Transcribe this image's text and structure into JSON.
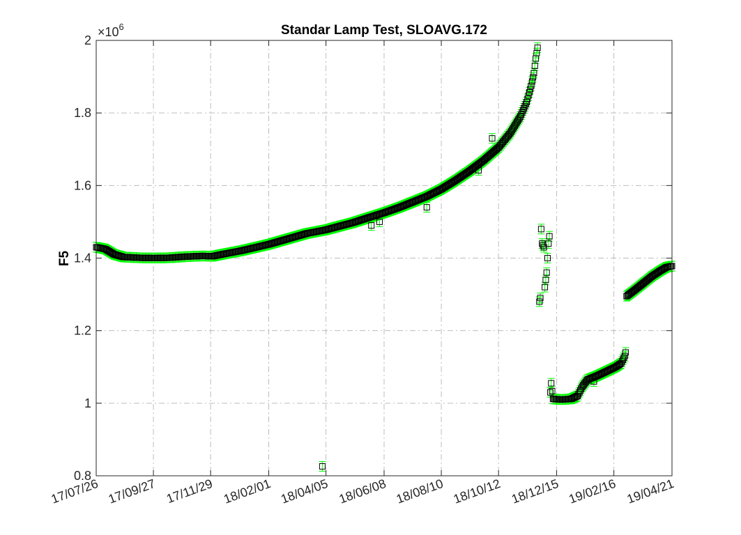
{
  "chart_data": {
    "type": "scatter",
    "title": "Standar Lamp Test, SLOAVG.172",
    "xlabel": "",
    "ylabel": "F5",
    "y_exponent_base": "×10",
    "y_exponent_power": "6",
    "y_multiplier": 1000000,
    "ylim": [
      0.8,
      2.0
    ],
    "yticks": [
      0.8,
      1.0,
      1.2,
      1.4,
      1.6,
      1.8,
      2.0
    ],
    "ytick_labels": [
      "0.8",
      "1",
      "1.2",
      "1.4",
      "1.6",
      "1.8",
      "2"
    ],
    "xlim": [
      "2017-07-26",
      "2019-04-21"
    ],
    "xticks": [
      "2017-07-26",
      "2017-09-27",
      "2017-11-29",
      "2018-02-01",
      "2018-04-05",
      "2018-06-08",
      "2018-08-10",
      "2018-10-12",
      "2018-12-15",
      "2019-02-16",
      "2019-04-21"
    ],
    "xtick_labels": [
      "17/07/26",
      "17/09/27",
      "17/11/29",
      "18/02/01",
      "18/04/05",
      "18/06/08",
      "18/08/10",
      "18/10/12",
      "18/12/15",
      "19/02/16",
      "19/04/21"
    ],
    "grid": true,
    "marker": "square",
    "marker_color": "#000000",
    "errorbar_color": "#00ff00",
    "segments": [
      {
        "points": [
          [
            "2017-07-26",
            1.43
          ],
          [
            "2017-08-05",
            1.425
          ],
          [
            "2017-08-15",
            1.41
          ],
          [
            "2017-08-25",
            1.403
          ],
          [
            "2017-09-10",
            1.401
          ],
          [
            "2017-09-27",
            1.4
          ],
          [
            "2017-10-15",
            1.401
          ],
          [
            "2017-11-01",
            1.404
          ],
          [
            "2017-11-20",
            1.406
          ],
          [
            "2017-12-01",
            1.405
          ],
          [
            "2017-12-15",
            1.412
          ],
          [
            "2018-01-01",
            1.42
          ],
          [
            "2018-01-15",
            1.428
          ],
          [
            "2018-02-01",
            1.438
          ],
          [
            "2018-02-15",
            1.448
          ],
          [
            "2018-03-01",
            1.458
          ],
          [
            "2018-03-15",
            1.468
          ],
          [
            "2018-04-05",
            1.478
          ],
          [
            "2018-04-20",
            1.488
          ],
          [
            "2018-05-05",
            1.498
          ],
          [
            "2018-05-20",
            1.51
          ],
          [
            "2018-06-08",
            1.525
          ],
          [
            "2018-06-25",
            1.54
          ],
          [
            "2018-07-10",
            1.555
          ],
          [
            "2018-07-25",
            1.57
          ],
          [
            "2018-08-10",
            1.59
          ],
          [
            "2018-08-25",
            1.613
          ],
          [
            "2018-09-10",
            1.64
          ],
          [
            "2018-09-25",
            1.668
          ],
          [
            "2018-10-12",
            1.705
          ],
          [
            "2018-10-25",
            1.745
          ],
          [
            "2018-11-05",
            1.79
          ],
          [
            "2018-11-12",
            1.83
          ],
          [
            "2018-11-17",
            1.875
          ],
          [
            "2018-11-20",
            1.91
          ],
          [
            "2018-11-22",
            1.95
          ],
          [
            "2018-11-24",
            1.98
          ]
        ]
      },
      {
        "points": [
          [
            "2018-11-26",
            1.28
          ],
          [
            "2018-11-27",
            1.29
          ],
          [
            "2018-11-28",
            1.48
          ],
          [
            "2018-11-29",
            1.44
          ],
          [
            "2018-12-01",
            1.43
          ],
          [
            "2018-12-02",
            1.32
          ],
          [
            "2018-12-04",
            1.36
          ],
          [
            "2018-12-06",
            1.44
          ],
          [
            "2018-12-07",
            1.46
          ]
        ]
      },
      {
        "points": [
          [
            "2018-12-08",
            1.03
          ],
          [
            "2018-12-09",
            1.055
          ],
          [
            "2018-12-11",
            1.012
          ],
          [
            "2018-12-20",
            1.01
          ],
          [
            "2018-12-31",
            1.012
          ],
          [
            "2019-01-07",
            1.02
          ],
          [
            "2019-01-12",
            1.045
          ],
          [
            "2019-01-18",
            1.065
          ],
          [
            "2019-01-28",
            1.075
          ],
          [
            "2019-02-08",
            1.088
          ],
          [
            "2019-02-18",
            1.1
          ],
          [
            "2019-02-24",
            1.11
          ],
          [
            "2019-02-28",
            1.13
          ],
          [
            "2019-03-01",
            1.14
          ]
        ]
      },
      {
        "points": [
          [
            "2019-03-02",
            1.295
          ],
          [
            "2019-03-10",
            1.31
          ],
          [
            "2019-03-20",
            1.33
          ],
          [
            "2019-03-30",
            1.35
          ],
          [
            "2019-04-08",
            1.365
          ],
          [
            "2019-04-15",
            1.375
          ],
          [
            "2019-04-21",
            1.378
          ]
        ]
      }
    ],
    "outliers": [
      [
        "2018-04-01",
        0.826
      ],
      [
        "2018-05-25",
        1.49
      ],
      [
        "2018-06-03",
        1.5
      ],
      [
        "2018-07-25",
        1.54
      ],
      [
        "2018-09-20",
        1.642
      ],
      [
        "2018-10-05",
        1.73
      ],
      [
        "2019-01-25",
        1.06
      ]
    ]
  }
}
